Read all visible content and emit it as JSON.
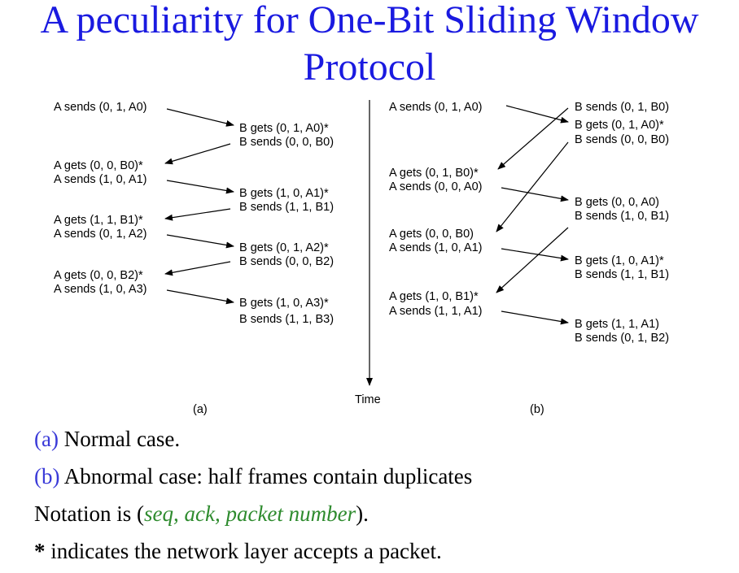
{
  "title": {
    "line1": "A peculiarity for One-Bit Sliding Window",
    "line2": "Protocol"
  },
  "diagram": {
    "time_label": "Time",
    "a": {
      "label": "(a)",
      "lines": [
        "A sends (0, 1, A0)",
        "B gets (0, 1, A0)*",
        "B sends (0, 0, B0)",
        "A gets (0, 0, B0)*",
        "A sends (1, 0, A1)",
        "B gets (1, 0, A1)*",
        "B sends (1, 1, B1)",
        "A gets (1, 1, B1)*",
        "A sends (0, 1, A2)",
        "B gets (0, 1, A2)*",
        "B sends (0, 0, B2)",
        "A gets (0, 0, B2)*",
        "A sends (1, 0, A3)",
        "B gets (1, 0, A3)*",
        "B sends (1, 1, B3)"
      ]
    },
    "b": {
      "label": "(b)",
      "lines": [
        "A sends (0, 1, A0)",
        "B sends (0, 1, B0)",
        "B gets (0, 1, A0)*",
        "B sends (0, 0, B0)",
        "A gets (0, 1, B0)*",
        "A sends (0, 0, A0)",
        "B gets (0, 0, A0)",
        "B sends (1, 0, B1)",
        "A gets (0, 0, B0)",
        "A sends (1, 0, A1)",
        "B gets (1, 0, A1)*",
        "B sends (1, 1, B1)",
        "A gets (1, 0, B1)*",
        "A sends (1, 1, A1)",
        "B gets (1, 1, A1)",
        "B sends (0, 1, B2)"
      ]
    }
  },
  "captions": {
    "a_label": "(a)",
    "a_text": " Normal case.",
    "b_label": "(b)",
    "b_text": " Abnormal case: half frames contain duplicates",
    "notation_prefix": "Notation is (",
    "notation_terms": "seq, ack, packet number",
    "notation_suffix": ").",
    "star": "*",
    "star_text": " indicates the network layer accepts a packet."
  },
  "colors": {
    "title": "#1a1ae0",
    "caption_label": "#3a3ad8",
    "notation_terms": "#2e8b2e"
  }
}
